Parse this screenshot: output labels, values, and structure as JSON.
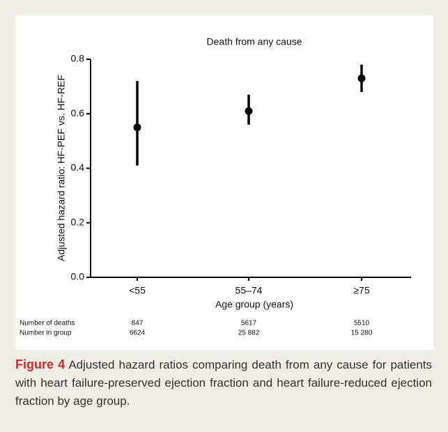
{
  "chart_data": {
    "type": "errorbar",
    "title": "Death from any cause",
    "categories": [
      "<55",
      "55–74",
      "≥75"
    ],
    "values": [
      0.55,
      0.61,
      0.73
    ],
    "ci_low": [
      0.41,
      0.56,
      0.68
    ],
    "ci_high": [
      0.72,
      0.67,
      0.78
    ],
    "color": "#000000",
    "ylim": [
      0,
      0.8
    ],
    "yticks": [
      {
        "value": 0,
        "label": "0.0"
      },
      0.2,
      0.4,
      0.6,
      0.8
    ],
    "xlabel": "Age group (years)",
    "ylabel": "Adjusted hazard ratio: HF-PEF vs. HF-REF",
    "table": {
      "rows": [
        {
          "label": "Number of deaths",
          "cells": [
            "847",
            "5617",
            "5510"
          ]
        },
        {
          "label": "Number in group",
          "cells": [
            "6624",
            "25 882",
            "15 280"
          ]
        }
      ]
    }
  },
  "caption": {
    "label": "Figure 4",
    "text": "Adjusted hazard ratios comparing death from any cause for patients with heart failure-preserved ejection fraction and heart failure-reduced ejection fraction by age group."
  }
}
